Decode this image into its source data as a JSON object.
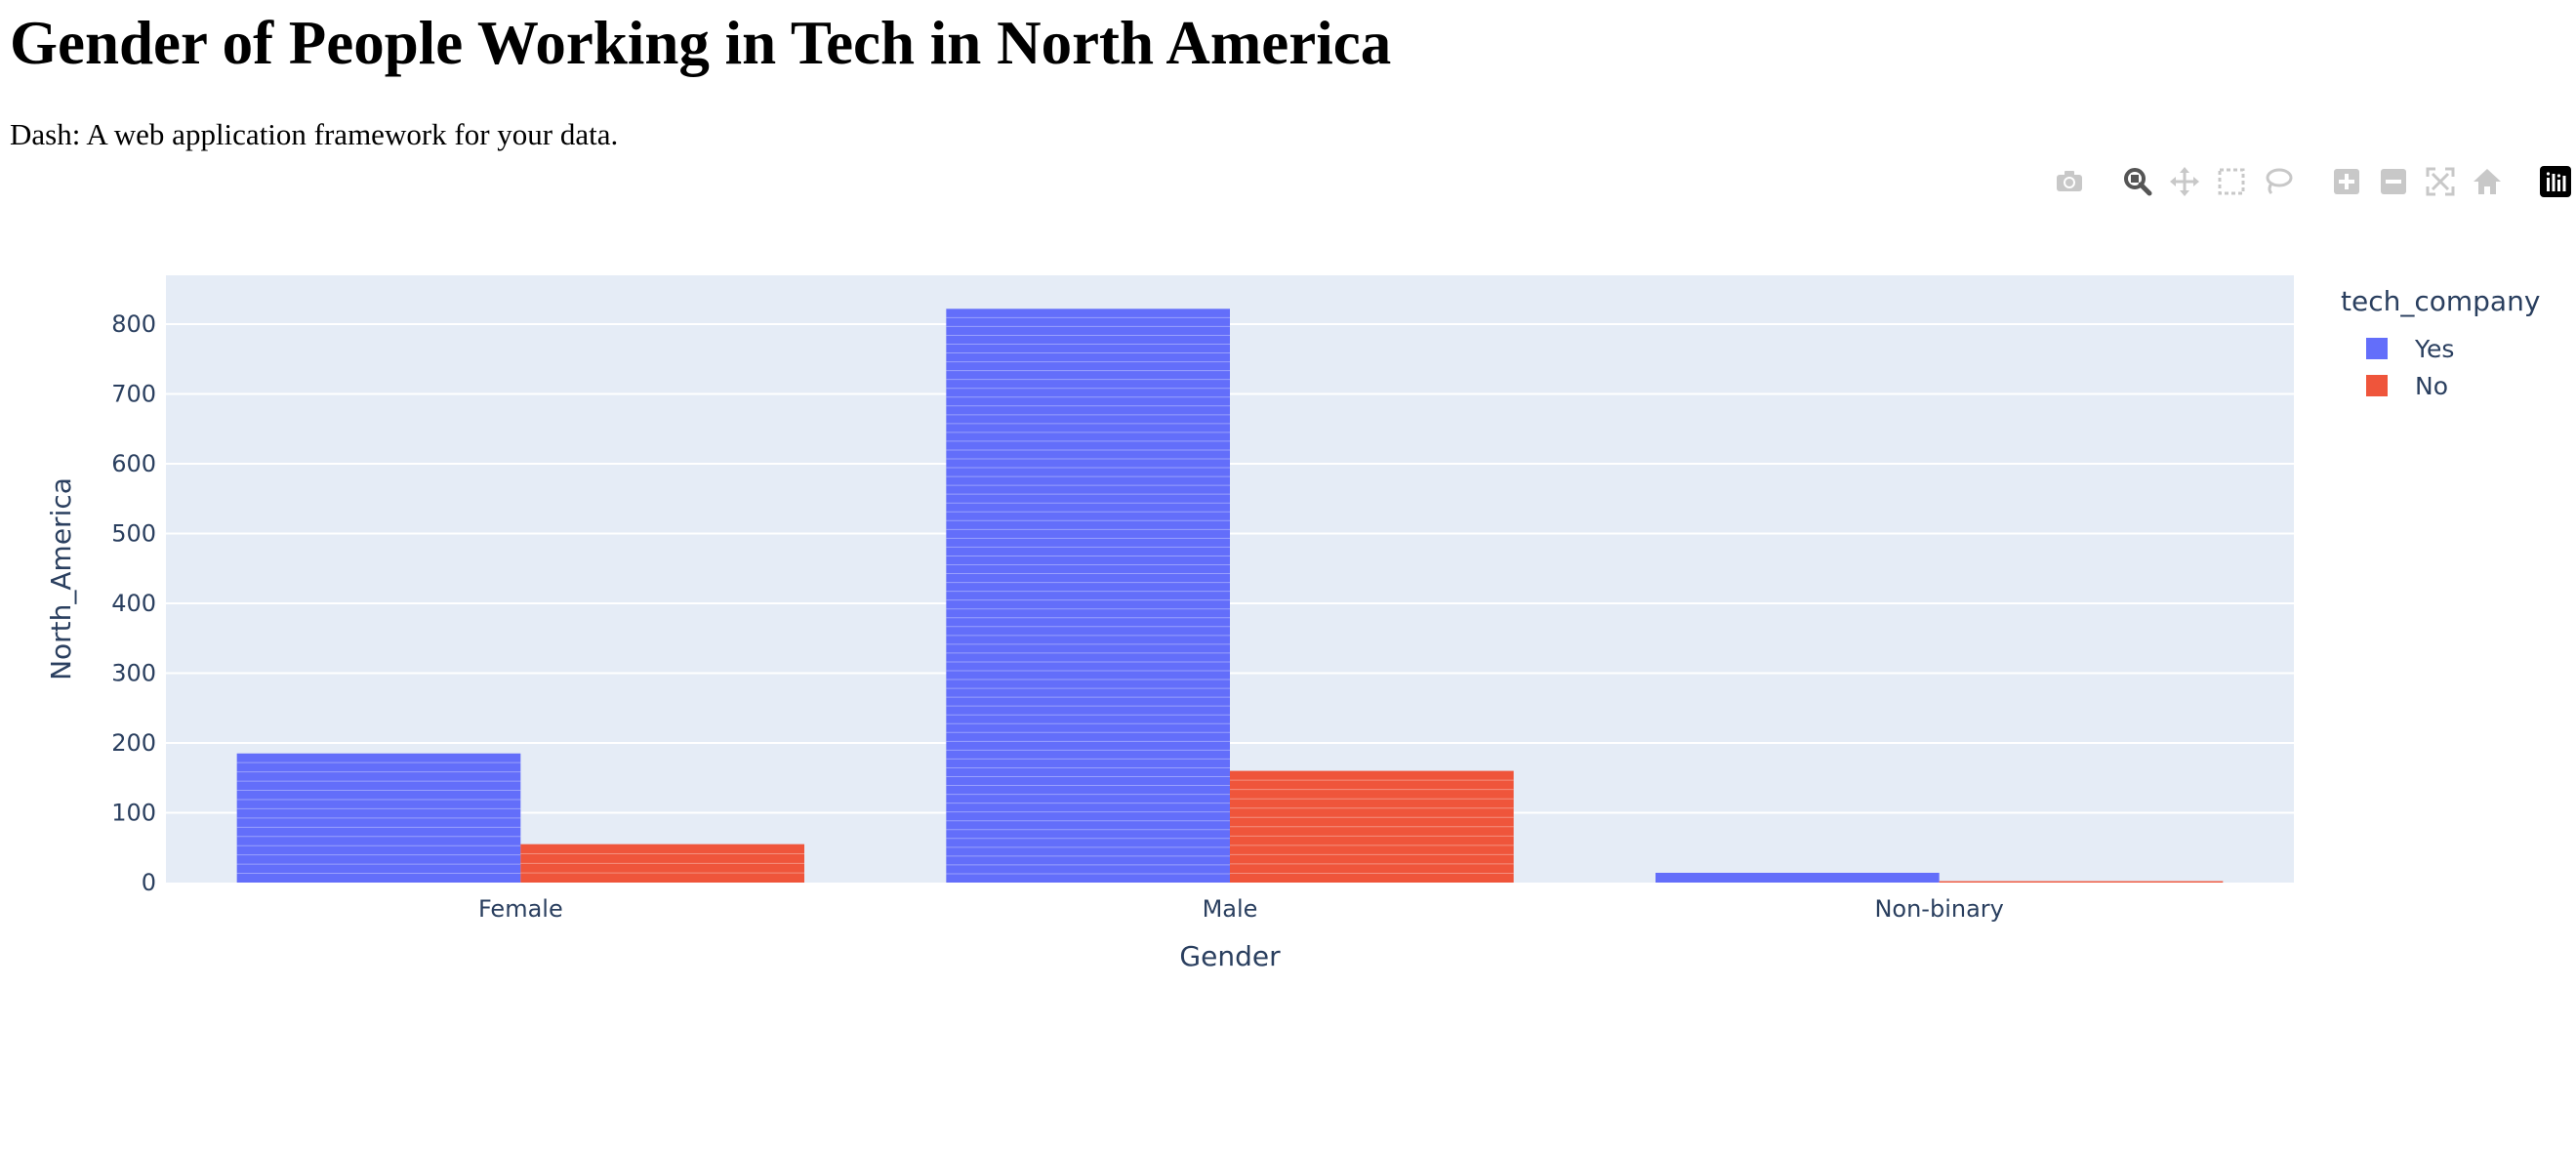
{
  "page": {
    "title": "Gender of People Working in Tech in North America",
    "subtitle": "Dash: A web application framework for your data."
  },
  "modebar": {
    "buttons": [
      {
        "name": "download-plot-button",
        "icon": "camera-icon"
      },
      {
        "name": "zoom-button",
        "icon": "zoom-icon"
      },
      {
        "name": "pan-button",
        "icon": "pan-icon"
      },
      {
        "name": "box-select-button",
        "icon": "box-select-icon"
      },
      {
        "name": "lasso-select-button",
        "icon": "lasso-icon"
      },
      {
        "name": "zoom-in-button",
        "icon": "plus-icon"
      },
      {
        "name": "zoom-out-button",
        "icon": "minus-icon"
      },
      {
        "name": "autoscale-button",
        "icon": "autoscale-icon"
      },
      {
        "name": "reset-axes-button",
        "icon": "home-icon"
      },
      {
        "name": "plotly-logo",
        "icon": "plotly-logo-icon"
      }
    ]
  },
  "chart_data": {
    "type": "bar",
    "barmode": "group",
    "xlabel": "Gender",
    "ylabel": "North_America",
    "categories": [
      "Female",
      "Male",
      "Non-binary"
    ],
    "ylim": [
      0,
      870
    ],
    "yticks": [
      0,
      100,
      200,
      300,
      400,
      500,
      600,
      700,
      800
    ],
    "grid": true,
    "legend_title": "tech_company",
    "legend_position": "top-right",
    "series": [
      {
        "name": "Yes",
        "color": "#636efa",
        "values": [
          185,
          822,
          14
        ]
      },
      {
        "name": "No",
        "color": "#ef553b",
        "values": [
          55,
          160,
          2
        ]
      }
    ]
  }
}
